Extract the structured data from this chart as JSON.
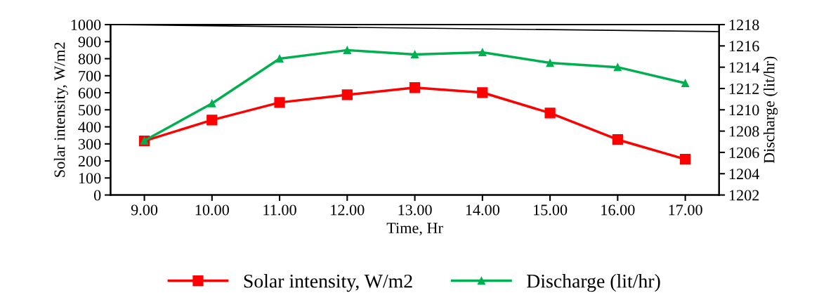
{
  "chart_data": {
    "type": "line",
    "xlabel": "Time, Hr",
    "ylabel": "Solar intensity, W/m2",
    "y2label": "Discharge (lit/hr)",
    "x": [
      9,
      10,
      11,
      12,
      13,
      14,
      15,
      16,
      17
    ],
    "xlim": [
      8.5,
      17.5
    ],
    "xticks": [
      {
        "value": 9,
        "label": "9.00"
      },
      {
        "value": 10,
        "label": "10.00"
      },
      {
        "value": 11,
        "label": "11.00"
      },
      {
        "value": 12,
        "label": "12.00"
      },
      {
        "value": 13,
        "label": "13.00"
      },
      {
        "value": 14,
        "label": "14.00"
      },
      {
        "value": 15,
        "label": "15.00"
      },
      {
        "value": 16,
        "label": "16.00"
      },
      {
        "value": 17,
        "label": "17.00"
      }
    ],
    "ylim": [
      0,
      1000
    ],
    "yticks": [
      0,
      100,
      200,
      300,
      400,
      500,
      600,
      700,
      800,
      900,
      1000
    ],
    "y2lim": [
      1202,
      1218
    ],
    "y2ticks": [
      1202,
      1204,
      1206,
      1208,
      1210,
      1212,
      1214,
      1216,
      1218
    ],
    "series": [
      {
        "name": "Solar intensity, W/m2",
        "color": "#ff0000",
        "marker": "square",
        "values": [
          317,
          440,
          543,
          588,
          630,
          601,
          481,
          325,
          210
        ]
      },
      {
        "name": "Discharge (lit/hr)",
        "color": "#00b050",
        "marker": "triangle",
        "axis": "y2",
        "values": [
          1207.1,
          1210.6,
          1214.8,
          1215.6,
          1215.2,
          1215.4,
          1214.4,
          1214.0,
          1212.5
        ]
      },
      {
        "color": "#000000",
        "marker": "none",
        "x": [
          8.5,
          17.5
        ],
        "values": [
          1000,
          959
        ]
      }
    ],
    "grid": false,
    "legend": "bottom"
  }
}
